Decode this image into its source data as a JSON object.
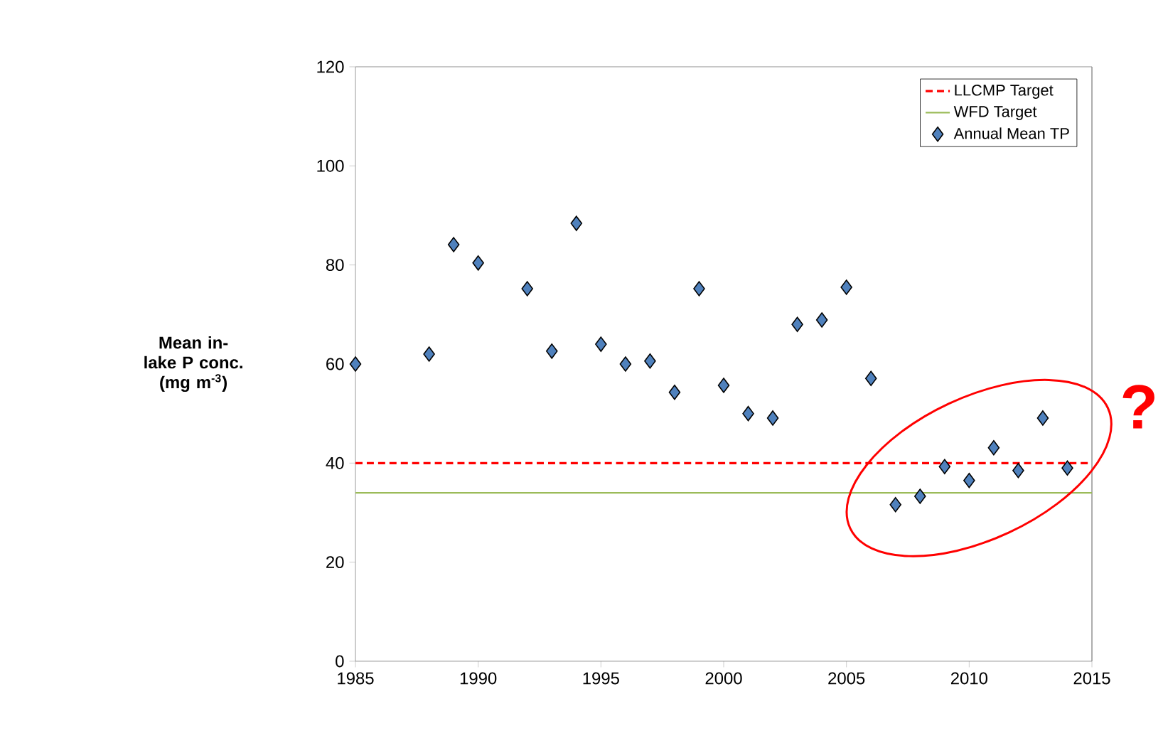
{
  "chart_data": {
    "type": "scatter",
    "ylabel": "Mean in-lake P conc. (mg m$^{-3}$)",
    "x": [
      1985,
      1988,
      1989,
      1990,
      1992,
      1993,
      1994,
      1995,
      1996,
      1997,
      1998,
      1999,
      2000,
      2001,
      2002,
      2003,
      2004,
      2005,
      2006,
      2007,
      2008,
      2009,
      2010,
      2011,
      2012,
      2013,
      2014
    ],
    "series": [
      {
        "name": "Annual Mean TP",
        "color": "#4f81bd",
        "values": [
          60.0,
          62.0,
          84.1,
          80.4,
          75.2,
          62.6,
          88.4,
          64.0,
          60.0,
          60.6,
          54.3,
          75.2,
          55.7,
          50.0,
          49.1,
          68.0,
          68.9,
          75.5,
          57.1,
          31.6,
          33.3,
          39.3,
          36.5,
          43.1,
          38.5,
          49.1,
          39.0
        ]
      }
    ],
    "ref_lines": [
      {
        "axis": "y",
        "value": 40,
        "label": "LLCMP Target",
        "color": "#ff0000",
        "line_style": "dashed"
      },
      {
        "axis": "y",
        "value": 34,
        "label": "WFD Target",
        "color": "#9bbb59",
        "line_style": "solid"
      }
    ],
    "annotations": [
      "?"
    ],
    "xlim": [
      1985,
      2015
    ],
    "ylim": [
      0,
      120
    ],
    "xticks": [
      1985,
      1990,
      1995,
      2000,
      2005,
      2010,
      2015
    ],
    "yticks": [
      0,
      20,
      40,
      60,
      80,
      100,
      120
    ],
    "marker": "diamond",
    "legend": "top right",
    "grid": false
  }
}
